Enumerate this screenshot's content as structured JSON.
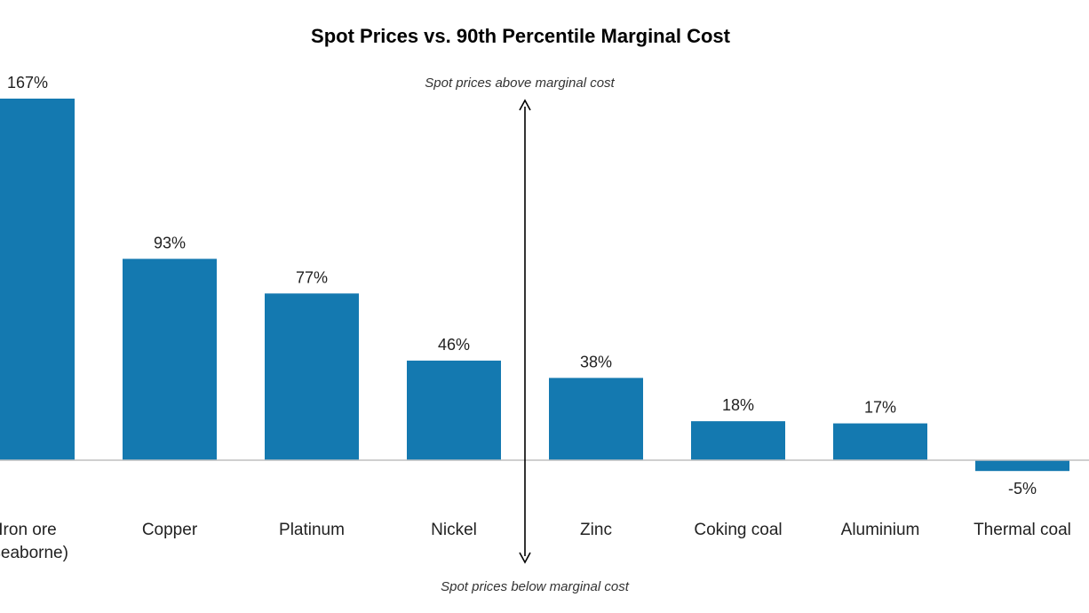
{
  "chart_data": {
    "type": "bar",
    "title": "Spot Prices vs. 90th Percentile Marginal Cost",
    "categories": [
      [
        "Iron ore",
        "(seaborne)"
      ],
      [
        "Copper"
      ],
      [
        "Platinum"
      ],
      [
        "Nickel"
      ],
      [
        "Zinc"
      ],
      [
        "Coking coal"
      ],
      [
        "Aluminium"
      ],
      [
        "Thermal coal"
      ]
    ],
    "values": [
      167,
      93,
      77,
      46,
      38,
      18,
      17,
      -5
    ],
    "value_labels": [
      "167%",
      "93%",
      "77%",
      "46%",
      "38%",
      "18%",
      "17%",
      "-5%"
    ],
    "annotations": {
      "above": "Spot prices above marginal cost",
      "below": "Spot prices below marginal cost"
    },
    "colors": {
      "bar": "#1479b0",
      "axis": "#bfbfbf",
      "arrow": "#000000"
    },
    "grid": false,
    "legend": "none"
  }
}
